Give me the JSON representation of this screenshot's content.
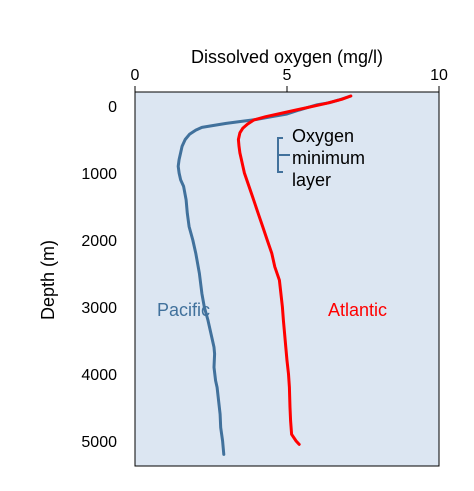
{
  "chart_data": {
    "type": "line",
    "xlabel": "Dissolved oxygen (mg/l)",
    "ylabel": "Depth (m)",
    "xlim": [
      0,
      10
    ],
    "ylim": [
      0,
      5300
    ],
    "y_inverted": true,
    "x_axis_position": "top",
    "grid": false,
    "plot_background": "#dce6f2",
    "x_ticks": [
      "0",
      "5",
      "10"
    ],
    "x_tick_values": [
      0,
      5,
      10
    ],
    "y_ticks": [
      "0",
      "1000",
      "2000",
      "3000",
      "4000",
      "5000"
    ],
    "y_tick_values": [
      0,
      1000,
      2000,
      3000,
      4000,
      5000
    ],
    "series": [
      {
        "name": "Pacific",
        "color": "#41719c",
        "points": [
          [
            7.1,
            -150
          ],
          [
            6.9,
            -120
          ],
          [
            6.7,
            -90
          ],
          [
            6.4,
            -50
          ],
          [
            6.0,
            -20
          ],
          [
            5.7,
            20
          ],
          [
            5.4,
            60
          ],
          [
            5.0,
            120
          ],
          [
            4.5,
            160
          ],
          [
            4.0,
            200
          ],
          [
            3.5,
            230
          ],
          [
            3.0,
            260
          ],
          [
            2.6,
            290
          ],
          [
            2.2,
            320
          ],
          [
            2.0,
            360
          ],
          [
            1.8,
            420
          ],
          [
            1.65,
            500
          ],
          [
            1.55,
            600
          ],
          [
            1.5,
            700
          ],
          [
            1.45,
            800
          ],
          [
            1.42,
            900
          ],
          [
            1.45,
            1000
          ],
          [
            1.5,
            1100
          ],
          [
            1.6,
            1200
          ],
          [
            1.68,
            1400
          ],
          [
            1.72,
            1600
          ],
          [
            1.78,
            1800
          ],
          [
            1.9,
            2000
          ],
          [
            2.0,
            2200
          ],
          [
            2.12,
            2500
          ],
          [
            2.2,
            2800
          ],
          [
            2.28,
            3000
          ],
          [
            2.4,
            3200
          ],
          [
            2.5,
            3400
          ],
          [
            2.55,
            3500
          ],
          [
            2.6,
            3600
          ],
          [
            2.62,
            3700
          ],
          [
            2.6,
            3900
          ],
          [
            2.65,
            4100
          ],
          [
            2.7,
            4200
          ],
          [
            2.75,
            4400
          ],
          [
            2.8,
            4600
          ],
          [
            2.82,
            4800
          ],
          [
            2.88,
            5000
          ],
          [
            2.9,
            5100
          ],
          [
            2.92,
            5200
          ]
        ]
      },
      {
        "name": "Atlantic",
        "color": "#ff0000",
        "points": [
          [
            7.1,
            -150
          ],
          [
            6.8,
            -100
          ],
          [
            6.3,
            -40
          ],
          [
            5.8,
            10
          ],
          [
            5.3,
            60
          ],
          [
            4.8,
            110
          ],
          [
            4.3,
            160
          ],
          [
            3.9,
            210
          ],
          [
            3.7,
            270
          ],
          [
            3.55,
            330
          ],
          [
            3.45,
            400
          ],
          [
            3.4,
            500
          ],
          [
            3.42,
            600
          ],
          [
            3.45,
            700
          ],
          [
            3.5,
            800
          ],
          [
            3.55,
            900
          ],
          [
            3.6,
            1000
          ],
          [
            3.75,
            1200
          ],
          [
            3.9,
            1400
          ],
          [
            4.05,
            1600
          ],
          [
            4.2,
            1800
          ],
          [
            4.35,
            2000
          ],
          [
            4.5,
            2200
          ],
          [
            4.6,
            2400
          ],
          [
            4.75,
            2600
          ],
          [
            4.8,
            2800
          ],
          [
            4.85,
            3000
          ],
          [
            4.88,
            3200
          ],
          [
            4.92,
            3400
          ],
          [
            4.96,
            3600
          ],
          [
            5.0,
            3800
          ],
          [
            5.05,
            4000
          ],
          [
            5.08,
            4200
          ],
          [
            5.1,
            4500
          ],
          [
            5.12,
            4700
          ],
          [
            5.15,
            4900
          ],
          [
            5.3,
            5000
          ],
          [
            5.4,
            5050
          ]
        ]
      }
    ],
    "annotations": {
      "pacific_label": "Pacific",
      "atlantic_label": "Atlantic",
      "oxygen_min_line1": "Oxygen",
      "oxygen_min_line2": "minimum",
      "oxygen_min_line3": "layer"
    }
  }
}
